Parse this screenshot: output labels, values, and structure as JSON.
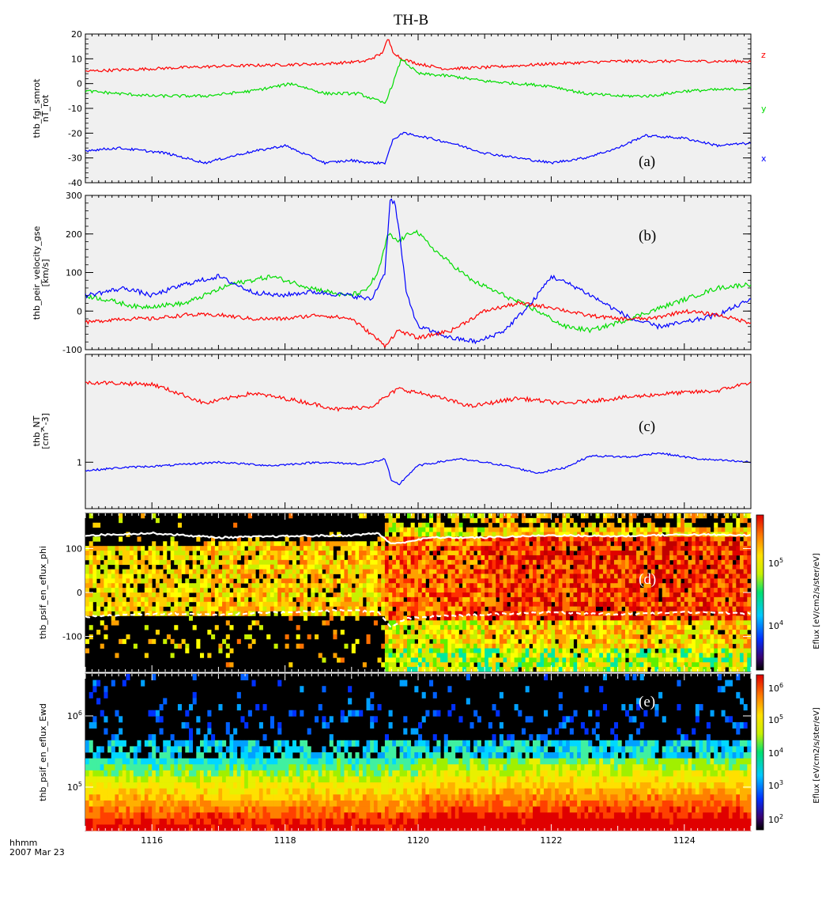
{
  "title": "TH-B",
  "time_axis": {
    "label_line1": "hhmm",
    "label_line2": "2007 Mar 23",
    "range": [
      1115,
      1125
    ],
    "major_ticks": [
      1116,
      1118,
      1120,
      1122,
      1124
    ],
    "tick_labels": [
      "1116",
      "1118",
      "1120",
      "1122",
      "1124"
    ]
  },
  "chart_data": [
    {
      "type": "line",
      "panel_label": "(a)",
      "ylabel_line1": "thb_fgl_smrot",
      "ylabel_line2": "nT_rot",
      "ylim": [
        -40,
        20
      ],
      "ytick_labels": [
        "20",
        "10",
        "0",
        "-10",
        "-20",
        "-30",
        "-40"
      ],
      "series": [
        {
          "name": "z",
          "color": "#ff0000",
          "x": [
            1115,
            1116,
            1117,
            1117.8,
            1118.6,
            1119.2,
            1119.45,
            1119.55,
            1119.62,
            1119.75,
            1120,
            1120.4,
            1121,
            1122,
            1123,
            1124,
            1125
          ],
          "y": [
            5,
            6,
            7,
            7.5,
            8,
            9,
            12,
            18,
            13,
            10,
            8,
            6,
            6.5,
            8,
            9,
            9,
            9
          ]
        },
        {
          "name": "y",
          "color": "#00dd00",
          "x": [
            1115,
            1116,
            1116.8,
            1117.5,
            1118.1,
            1118.6,
            1119.1,
            1119.4,
            1119.5,
            1119.62,
            1119.75,
            1120,
            1120.5,
            1121,
            1122,
            1122.5,
            1123,
            1123.5,
            1124,
            1125
          ],
          "y": [
            -3,
            -5,
            -5,
            -3,
            0,
            -4,
            -4,
            -7,
            -8,
            0,
            10,
            4,
            3,
            1,
            -1,
            -4,
            -5,
            -5,
            -3,
            -2
          ]
        },
        {
          "name": "x",
          "color": "#0000ff",
          "x": [
            1115,
            1115.5,
            1116.2,
            1116.8,
            1117.4,
            1118,
            1118.6,
            1119,
            1119.3,
            1119.5,
            1119.62,
            1119.75,
            1120,
            1120.5,
            1121,
            1121.5,
            1122,
            1122.5,
            1123,
            1123.4,
            1124,
            1124.5,
            1125
          ],
          "y": [
            -27,
            -26,
            -28,
            -32,
            -28,
            -25,
            -32,
            -31,
            -32,
            -32,
            -23,
            -20,
            -21,
            -24,
            -28,
            -30,
            -32,
            -30,
            -26,
            -21,
            -22,
            -25,
            -24
          ]
        }
      ]
    },
    {
      "type": "line",
      "panel_label": "(b)",
      "ylabel_line1": "thb_peir_velocity_gse",
      "ylabel_line2": "[km/s]",
      "ylim": [
        -100,
        300
      ],
      "ytick_labels": [
        "300",
        "200",
        "100",
        "0",
        "-100"
      ],
      "series": [
        {
          "name": "",
          "color": "#00dd00",
          "x": [
            1115,
            1115.3,
            1115.8,
            1116.5,
            1117.2,
            1117.8,
            1118.4,
            1118.9,
            1119.2,
            1119.4,
            1119.55,
            1119.7,
            1119.95,
            1120.3,
            1120.8,
            1121.3,
            1121.8,
            1122.2,
            1122.6,
            1123,
            1123.5,
            1124,
            1124.5,
            1125
          ],
          "y": [
            40,
            30,
            10,
            20,
            70,
            90,
            60,
            40,
            50,
            100,
            200,
            180,
            210,
            150,
            80,
            40,
            0,
            -40,
            -50,
            -30,
            0,
            30,
            60,
            70
          ]
        },
        {
          "name": "",
          "color": "#0000ff",
          "x": [
            1115,
            1115.6,
            1116,
            1116.5,
            1117,
            1117.5,
            1117.9,
            1118.4,
            1119,
            1119.3,
            1119.5,
            1119.58,
            1119.65,
            1119.72,
            1119.82,
            1120,
            1120.5,
            1120.9,
            1121.3,
            1121.7,
            1122,
            1122.4,
            1122.8,
            1123.2,
            1123.6,
            1124,
            1124.5,
            1125
          ],
          "y": [
            40,
            60,
            40,
            70,
            90,
            50,
            40,
            50,
            40,
            30,
            100,
            290,
            280,
            200,
            50,
            -40,
            -70,
            -80,
            -50,
            20,
            90,
            60,
            20,
            -20,
            -40,
            -30,
            -10,
            30
          ]
        },
        {
          "name": "",
          "color": "#ff0000",
          "x": [
            1115,
            1115.5,
            1116,
            1116.5,
            1117,
            1117.5,
            1118,
            1118.5,
            1119,
            1119.3,
            1119.5,
            1119.7,
            1120,
            1120.5,
            1121,
            1121.5,
            1122,
            1122.5,
            1123,
            1123.5,
            1124,
            1124.5,
            1125
          ],
          "y": [
            -30,
            -20,
            -20,
            -10,
            -10,
            -20,
            -20,
            -10,
            -20,
            -60,
            -90,
            -50,
            -70,
            -50,
            0,
            20,
            10,
            -10,
            -20,
            -20,
            0,
            -10,
            -30
          ]
        }
      ]
    },
    {
      "type": "line",
      "panel_label": "(c)",
      "ylabel_line1": "thb_NT",
      "ylabel_line2": "[cm^-3]",
      "yscale": "log",
      "ylim": [
        0.5,
        5
      ],
      "ytick_labels": [
        "1"
      ],
      "series": [
        {
          "name": "",
          "color": "#ff0000",
          "x": [
            1115,
            1116,
            1116.8,
            1117.5,
            1118.2,
            1118.8,
            1119.3,
            1119.55,
            1119.7,
            1120.2,
            1120.8,
            1121.5,
            1122.2,
            1123,
            1123.8,
            1124.5,
            1125
          ],
          "y": [
            3.3,
            3.2,
            2.4,
            2.8,
            2.5,
            2.2,
            2.3,
            2.7,
            3.0,
            2.7,
            2.3,
            2.6,
            2.4,
            2.6,
            2.8,
            2.9,
            3.3
          ]
        },
        {
          "name": "",
          "color": "#0000ff",
          "x": [
            1115,
            1115.5,
            1116.2,
            1117,
            1117.8,
            1118.5,
            1119.2,
            1119.5,
            1119.6,
            1119.72,
            1120,
            1120.6,
            1121.2,
            1121.8,
            1122.2,
            1122.6,
            1123.2,
            1123.6,
            1124.2,
            1125
          ],
          "y": [
            0.88,
            0.92,
            0.95,
            1.0,
            0.95,
            1.0,
            0.97,
            1.05,
            0.75,
            0.72,
            0.95,
            1.05,
            0.97,
            0.85,
            0.92,
            1.1,
            1.08,
            1.15,
            1.05,
            1.0
          ]
        }
      ]
    },
    {
      "type": "heatmap",
      "panel_label": "(d)",
      "ylabel": "thb_psif_en_eflux_phi",
      "ylim": [
        -180,
        180
      ],
      "ytick_labels": [
        "100",
        "0",
        "-100"
      ],
      "colorbar_label": "Eflux [eV/cm2/s/ster/eV]",
      "colorbar_ticks": [
        "10^5",
        "10^4"
      ],
      "overlay_solid": {
        "color": "#ffffff",
        "x": [
          1115,
          1116,
          1117,
          1118,
          1119,
          1119.4,
          1119.6,
          1119.8,
          1120.2,
          1121,
          1122,
          1123,
          1124,
          1125
        ],
        "y": [
          130,
          135,
          125,
          128,
          130,
          135,
          110,
          115,
          125,
          125,
          130,
          128,
          132,
          130
        ]
      },
      "overlay_dashed": {
        "color": "#ffffff",
        "x": [
          1115,
          1116,
          1117,
          1118,
          1119,
          1119.4,
          1119.6,
          1119.8,
          1120.2,
          1121,
          1122,
          1123,
          1124,
          1125
        ],
        "y": [
          -55,
          -48,
          -50,
          -45,
          -40,
          -45,
          -80,
          -60,
          -55,
          -50,
          -45,
          -50,
          -45,
          -48
        ]
      }
    },
    {
      "type": "heatmap",
      "panel_label": "(e)",
      "ylabel": "thb_psif_en_eflux_Ewd",
      "yscale": "log",
      "ytick_labels": [
        "10^6",
        "10^5"
      ],
      "colorbar_label": "Eflux [eV/cm2/s/ster/eV]",
      "colorbar_ticks": [
        "10^6",
        "10^5",
        "10^4",
        "10^3",
        "10^2"
      ]
    }
  ]
}
